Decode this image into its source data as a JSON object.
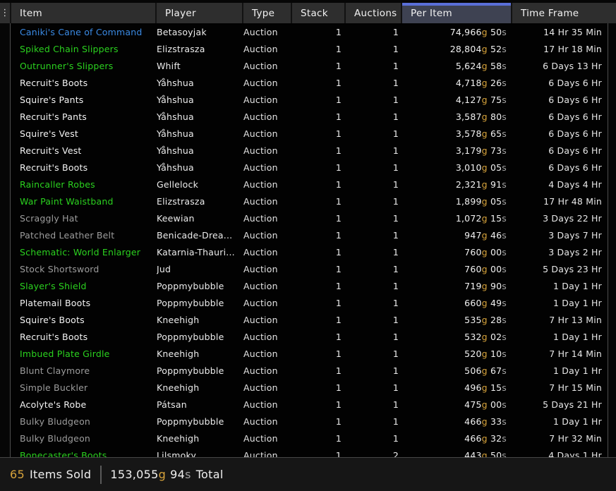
{
  "colors": {
    "accent": "#5a6fd8",
    "gold": "#d7a33b",
    "quality": {
      "poor": "#9d9d9d",
      "common": "#f4f4f4",
      "uncommon": "#2bd21f",
      "rare": "#3a8ae4"
    }
  },
  "icons": {
    "grip": "⋮"
  },
  "header": {
    "sorted_column": "Per Item",
    "columns": [
      {
        "id": "item",
        "label": "Item"
      },
      {
        "id": "player",
        "label": "Player"
      },
      {
        "id": "type",
        "label": "Type"
      },
      {
        "id": "stack",
        "label": "Stack"
      },
      {
        "id": "auctions",
        "label": "Auctions"
      },
      {
        "id": "peritem",
        "label": "Per Item"
      },
      {
        "id": "timeframe",
        "label": "Time Frame"
      }
    ]
  },
  "rows": [
    {
      "item": "Caniki's Cane of Command",
      "quality": "rare",
      "player": "Betasoyjak",
      "type": "Auction",
      "stack": "1",
      "auctions": "1",
      "gold": "74,966",
      "silver": "50",
      "time": "14 Hr 35 Min"
    },
    {
      "item": "Spiked Chain Slippers",
      "quality": "uncommon",
      "player": "Elizstrasza",
      "type": "Auction",
      "stack": "1",
      "auctions": "1",
      "gold": "28,804",
      "silver": "52",
      "time": "17 Hr 18 Min"
    },
    {
      "item": "Outrunner's Slippers",
      "quality": "uncommon",
      "player": "Whift",
      "type": "Auction",
      "stack": "1",
      "auctions": "1",
      "gold": "5,624",
      "silver": "58",
      "time": "6 Days 13 Hr"
    },
    {
      "item": "Recruit's Boots",
      "quality": "common",
      "player": "Yåhshua",
      "type": "Auction",
      "stack": "1",
      "auctions": "1",
      "gold": "4,718",
      "silver": "26",
      "time": "6 Days 6 Hr"
    },
    {
      "item": "Squire's Pants",
      "quality": "common",
      "player": "Yåhshua",
      "type": "Auction",
      "stack": "1",
      "auctions": "1",
      "gold": "4,127",
      "silver": "75",
      "time": "6 Days 6 Hr"
    },
    {
      "item": "Recruit's Pants",
      "quality": "common",
      "player": "Yåhshua",
      "type": "Auction",
      "stack": "1",
      "auctions": "1",
      "gold": "3,587",
      "silver": "80",
      "time": "6 Days 6 Hr"
    },
    {
      "item": "Squire's Vest",
      "quality": "common",
      "player": "Yåhshua",
      "type": "Auction",
      "stack": "1",
      "auctions": "1",
      "gold": "3,578",
      "silver": "65",
      "time": "6 Days 6 Hr"
    },
    {
      "item": "Recruit's Vest",
      "quality": "common",
      "player": "Yåhshua",
      "type": "Auction",
      "stack": "1",
      "auctions": "1",
      "gold": "3,179",
      "silver": "73",
      "time": "6 Days 6 Hr"
    },
    {
      "item": "Recruit's Boots",
      "quality": "common",
      "player": "Yåhshua",
      "type": "Auction",
      "stack": "1",
      "auctions": "1",
      "gold": "3,010",
      "silver": "05",
      "time": "6 Days 6 Hr"
    },
    {
      "item": "Raincaller Robes",
      "quality": "uncommon",
      "player": "Gellelock",
      "type": "Auction",
      "stack": "1",
      "auctions": "1",
      "gold": "2,321",
      "silver": "91",
      "time": "4 Days 4 Hr"
    },
    {
      "item": "War Paint Waistband",
      "quality": "uncommon",
      "player": "Elizstrasza",
      "type": "Auction",
      "stack": "1",
      "auctions": "1",
      "gold": "1,899",
      "silver": "05",
      "time": "17 Hr 48 Min"
    },
    {
      "item": "Scraggly Hat",
      "quality": "poor",
      "player": "Keewian",
      "type": "Auction",
      "stack": "1",
      "auctions": "1",
      "gold": "1,072",
      "silver": "15",
      "time": "3 Days 22 Hr"
    },
    {
      "item": "Patched Leather Belt",
      "quality": "poor",
      "player": "Benicade-Drea...",
      "type": "Auction",
      "stack": "1",
      "auctions": "1",
      "gold": "947",
      "silver": "46",
      "time": "3 Days 7 Hr"
    },
    {
      "item": "Schematic: World Enlarger",
      "quality": "uncommon",
      "player": "Katarnia-Thauri...",
      "type": "Auction",
      "stack": "1",
      "auctions": "1",
      "gold": "760",
      "silver": "00",
      "time": "3 Days 2 Hr"
    },
    {
      "item": "Stock Shortsword",
      "quality": "poor",
      "player": "Jud",
      "type": "Auction",
      "stack": "1",
      "auctions": "1",
      "gold": "760",
      "silver": "00",
      "time": "5 Days 23 Hr"
    },
    {
      "item": "Slayer's Shield",
      "quality": "uncommon",
      "player": "Poppmybubble",
      "type": "Auction",
      "stack": "1",
      "auctions": "1",
      "gold": "719",
      "silver": "90",
      "time": "1 Day 1 Hr"
    },
    {
      "item": "Platemail Boots",
      "quality": "common",
      "player": "Poppmybubble",
      "type": "Auction",
      "stack": "1",
      "auctions": "1",
      "gold": "660",
      "silver": "49",
      "time": "1 Day 1 Hr"
    },
    {
      "item": "Squire's Boots",
      "quality": "common",
      "player": "Kneehigh",
      "type": "Auction",
      "stack": "1",
      "auctions": "1",
      "gold": "535",
      "silver": "28",
      "time": "7 Hr 13 Min"
    },
    {
      "item": "Recruit's Boots",
      "quality": "common",
      "player": "Poppmybubble",
      "type": "Auction",
      "stack": "1",
      "auctions": "1",
      "gold": "532",
      "silver": "02",
      "time": "1 Day 1 Hr"
    },
    {
      "item": "Imbued Plate Girdle",
      "quality": "uncommon",
      "player": "Kneehigh",
      "type": "Auction",
      "stack": "1",
      "auctions": "1",
      "gold": "520",
      "silver": "10",
      "time": "7 Hr 14 Min"
    },
    {
      "item": "Blunt Claymore",
      "quality": "poor",
      "player": "Poppmybubble",
      "type": "Auction",
      "stack": "1",
      "auctions": "1",
      "gold": "506",
      "silver": "67",
      "time": "1 Day 1 Hr"
    },
    {
      "item": "Simple Buckler",
      "quality": "poor",
      "player": "Kneehigh",
      "type": "Auction",
      "stack": "1",
      "auctions": "1",
      "gold": "496",
      "silver": "15",
      "time": "7 Hr 15 Min"
    },
    {
      "item": "Acolyte's Robe",
      "quality": "common",
      "player": "Pátsan",
      "type": "Auction",
      "stack": "1",
      "auctions": "1",
      "gold": "475",
      "silver": "00",
      "time": "5 Days 21 Hr"
    },
    {
      "item": "Bulky Bludgeon",
      "quality": "poor",
      "player": "Poppmybubble",
      "type": "Auction",
      "stack": "1",
      "auctions": "1",
      "gold": "466",
      "silver": "33",
      "time": "1 Day 1 Hr"
    },
    {
      "item": "Bulky Bludgeon",
      "quality": "poor",
      "player": "Kneehigh",
      "type": "Auction",
      "stack": "1",
      "auctions": "1",
      "gold": "466",
      "silver": "32",
      "time": "7 Hr 32 Min"
    },
    {
      "item": "Bonecaster's Boots",
      "quality": "uncommon",
      "player": "Lilsmoky",
      "type": "Auction",
      "stack": "1",
      "auctions": "2",
      "gold": "443",
      "silver": "50",
      "time": "4 Days 1 Hr"
    }
  ],
  "footer": {
    "items_sold_count": "65",
    "items_sold_label": "Items Sold",
    "total_gold": "153,055",
    "gold_unit": "g",
    "total_silver": "94",
    "silver_unit": "s",
    "total_label": "Total"
  }
}
